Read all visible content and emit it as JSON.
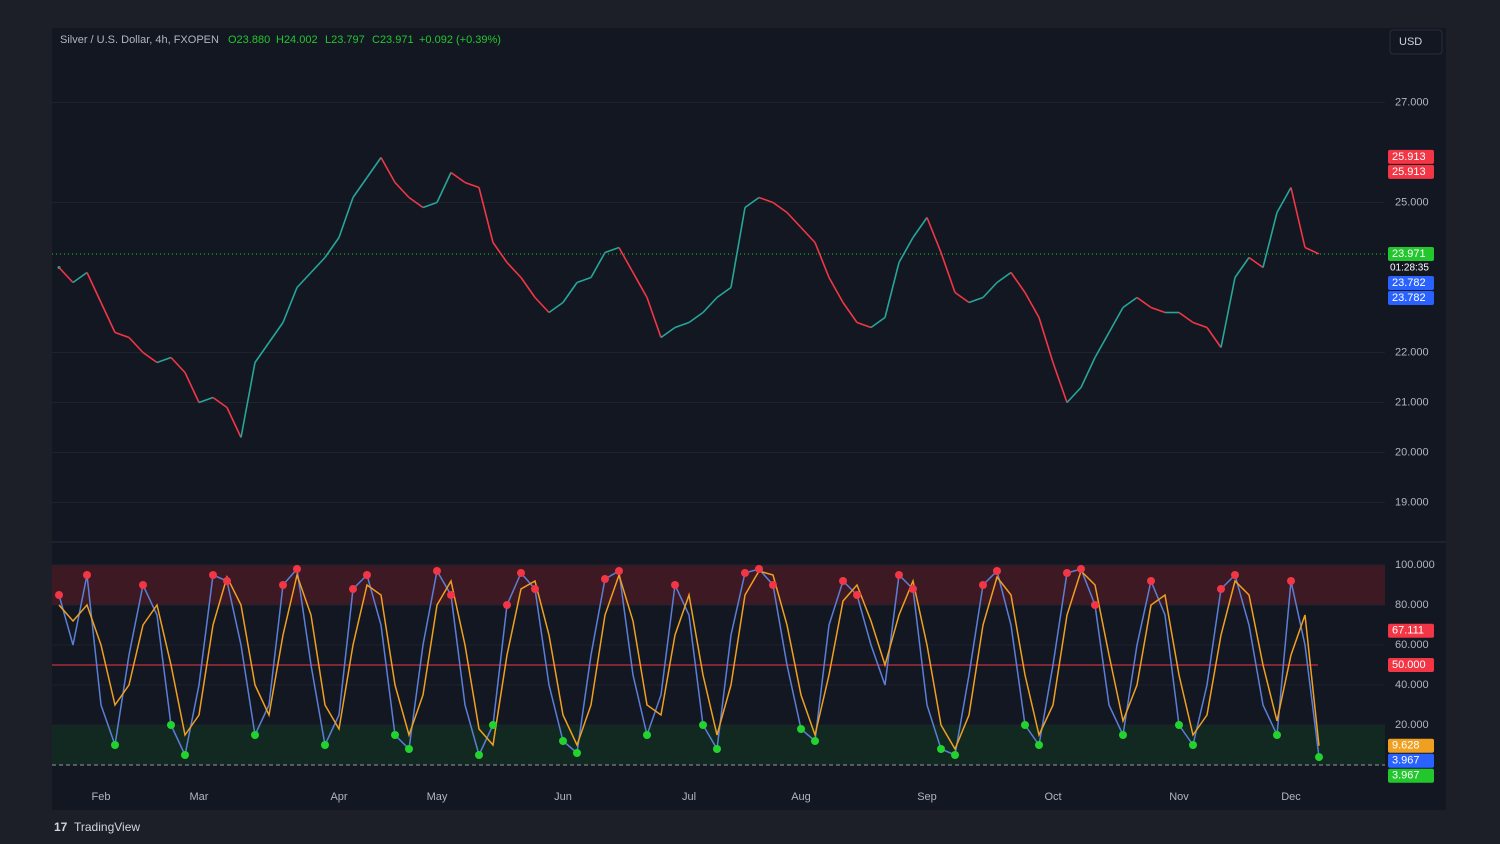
{
  "header": {
    "symbol": "Silver / U.S. Dollar, 4h, FXOPEN",
    "open": "O23.880",
    "high": "H24.002",
    "low": "L23.797",
    "close": "C23.971",
    "change": "+0.092 (+0.39%)",
    "currency": "USD",
    "countdown": "01:28:35"
  },
  "footer": "TradingView",
  "chart_data": [
    {
      "type": "line",
      "categories": [
        null,
        null,
        null,
        "Feb",
        null,
        null,
        null,
        null,
        null,
        null,
        "Mar",
        null,
        null,
        null,
        null,
        null,
        null,
        null,
        null,
        null,
        "Apr",
        null,
        null,
        null,
        null,
        null,
        null,
        "May",
        null,
        null,
        null,
        null,
        null,
        null,
        null,
        null,
        "Jun",
        null,
        null,
        null,
        null,
        null,
        null,
        null,
        null,
        "Jul",
        null,
        null,
        null,
        null,
        null,
        null,
        null,
        "Aug",
        null,
        null,
        null,
        null,
        null,
        null,
        null,
        null,
        "Sep",
        null,
        null,
        null,
        null,
        null,
        null,
        null,
        null,
        "Oct",
        null,
        null,
        null,
        null,
        null,
        null,
        null,
        null,
        "Nov",
        null,
        null,
        null,
        null,
        null,
        null,
        null,
        "Dec",
        null,
        null
      ],
      "values": [
        23.7,
        23.4,
        23.6,
        23.0,
        22.4,
        22.3,
        22.0,
        21.8,
        21.9,
        21.6,
        21.0,
        21.1,
        20.9,
        20.3,
        21.8,
        22.2,
        22.6,
        23.3,
        23.6,
        23.9,
        24.3,
        25.1,
        25.5,
        25.9,
        25.4,
        25.1,
        24.9,
        25.0,
        25.6,
        25.4,
        25.3,
        24.2,
        23.8,
        23.5,
        23.1,
        22.8,
        23.0,
        23.4,
        23.5,
        24.0,
        24.1,
        23.6,
        23.1,
        22.3,
        22.5,
        22.6,
        22.8,
        23.1,
        23.3,
        24.9,
        25.1,
        25.0,
        24.8,
        24.5,
        24.2,
        23.5,
        23.0,
        22.6,
        22.5,
        22.7,
        23.8,
        24.3,
        24.7,
        24.0,
        23.2,
        23.0,
        23.1,
        23.4,
        23.6,
        23.2,
        22.7,
        21.8,
        21.0,
        21.3,
        21.9,
        22.4,
        22.9,
        23.1,
        22.9,
        22.8,
        22.8,
        22.6,
        22.5,
        22.1,
        23.5,
        23.9,
        23.7,
        24.8,
        25.3,
        24.1,
        23.971
      ],
      "up_color": "#26a69a",
      "down_color": "#f23645",
      "ylim": [
        18.25,
        28.45
      ],
      "yticks": [
        {
          "value": 19,
          "label": "19.000"
        },
        {
          "value": 20,
          "label": "20.000"
        },
        {
          "value": 21,
          "label": "21.000"
        },
        {
          "value": 22,
          "label": "22.000"
        },
        {
          "value": 25,
          "label": "25.000"
        },
        {
          "value": 27,
          "label": "27.000"
        }
      ],
      "axis_labels": [
        {
          "value": 25.913,
          "label": "25.913",
          "color": "#f23645"
        },
        {
          "value": 25.913,
          "label": "25.913",
          "color": "#f23645"
        },
        {
          "value": 23.971,
          "label": "23.971",
          "color": "#22c72e"
        },
        {
          "value": 23.782,
          "label": "23.782",
          "color": "#2962ff"
        },
        {
          "value": 23.782,
          "label": "23.782",
          "color": "#2962ff"
        }
      ]
    },
    {
      "type": "line",
      "series": [
        {
          "color": "#5b7fd6",
          "values": [
            85,
            60,
            95,
            30,
            10,
            55,
            90,
            75,
            20,
            5,
            40,
            95,
            92,
            60,
            15,
            30,
            90,
            98,
            50,
            10,
            25,
            88,
            95,
            70,
            15,
            8,
            60,
            97,
            85,
            30,
            5,
            20,
            80,
            96,
            88,
            40,
            12,
            6,
            55,
            93,
            97,
            45,
            15,
            35,
            90,
            75,
            20,
            8,
            65,
            96,
            98,
            90,
            50,
            18,
            12,
            70,
            92,
            85,
            60,
            40,
            95,
            88,
            30,
            8,
            5,
            45,
            90,
            97,
            70,
            20,
            10,
            50,
            96,
            98,
            80,
            30,
            15,
            60,
            92,
            75,
            20,
            10,
            40,
            88,
            95,
            70,
            30,
            15,
            92,
            60,
            3.967
          ]
        },
        {
          "color": "#f0a020",
          "values": [
            80,
            72,
            80,
            60,
            30,
            40,
            70,
            80,
            50,
            15,
            25,
            70,
            94,
            80,
            40,
            25,
            65,
            95,
            75,
            30,
            18,
            60,
            90,
            85,
            40,
            15,
            35,
            80,
            92,
            60,
            18,
            10,
            55,
            88,
            92,
            65,
            25,
            10,
            30,
            75,
            95,
            72,
            30,
            25,
            65,
            85,
            45,
            15,
            40,
            85,
            97,
            95,
            70,
            35,
            15,
            45,
            82,
            90,
            72,
            50,
            75,
            92,
            60,
            20,
            8,
            25,
            70,
            94,
            85,
            45,
            15,
            30,
            75,
            97,
            90,
            55,
            22,
            40,
            80,
            85,
            45,
            15,
            25,
            65,
            92,
            85,
            50,
            22,
            55,
            75,
            9.628
          ]
        }
      ],
      "ylim": [
        -10,
        110
      ],
      "yticks": [
        {
          "value": 20,
          "label": "20.000"
        },
        {
          "value": 40,
          "label": "40.000"
        },
        {
          "value": 60,
          "label": "60.000"
        },
        {
          "value": 80,
          "label": "80.000"
        },
        {
          "value": 100,
          "label": "100.000"
        }
      ],
      "zones": [
        {
          "from": 80,
          "to": 100,
          "color": "#5a1a25"
        },
        {
          "from": 0,
          "to": 20,
          "color": "#123522"
        }
      ],
      "midline": {
        "value": 50,
        "label": "50.000",
        "color": "#f23645"
      },
      "axis_labels": [
        {
          "value": 67.111,
          "label": "67.111",
          "color": "#f23645"
        },
        {
          "value": 9.628,
          "label": "9.628",
          "color": "#f0a020"
        },
        {
          "value": 3.967,
          "label": "3.967",
          "color": "#2962ff"
        },
        {
          "value": 3.967,
          "label": "3.967",
          "color": "#22c72e"
        }
      ]
    }
  ]
}
